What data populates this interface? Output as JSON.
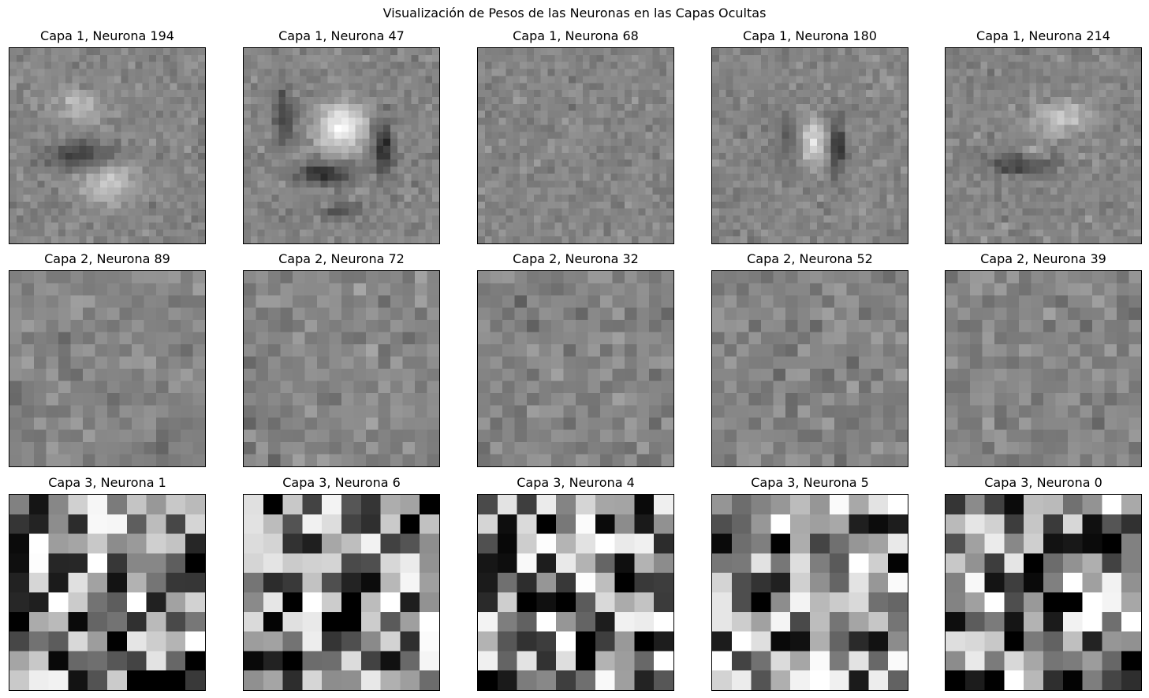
{
  "figure": {
    "title": "Visualización de Pesos de las Neuronas en las Capas Ocultas",
    "colormap": "gray"
  },
  "chart_data": [
    {
      "type": "heatmap",
      "title": "Capa 1, Neurona 194",
      "layer": 1,
      "neuron": 194,
      "grid": [
        28,
        28
      ],
      "pattern": "two-blobs",
      "seed": 194
    },
    {
      "type": "heatmap",
      "title": "Capa 1, Neurona 47",
      "layer": 1,
      "neuron": 47,
      "grid": [
        28,
        28
      ],
      "pattern": "bright-center",
      "seed": 47
    },
    {
      "type": "heatmap",
      "title": "Capa 1, Neurona 68",
      "layer": 1,
      "neuron": 68,
      "grid": [
        28,
        28
      ],
      "pattern": "noise",
      "seed": 68
    },
    {
      "type": "heatmap",
      "title": "Capa 1, Neurona 180",
      "layer": 1,
      "neuron": 180,
      "grid": [
        28,
        28
      ],
      "pattern": "stroke",
      "seed": 180
    },
    {
      "type": "heatmap",
      "title": "Capa 1, Neurona 214",
      "layer": 1,
      "neuron": 214,
      "grid": [
        28,
        28
      ],
      "pattern": "ring",
      "seed": 214
    },
    {
      "type": "heatmap",
      "title": "Capa 2, Neurona 89",
      "layer": 2,
      "neuron": 89,
      "grid": [
        16,
        16
      ],
      "pattern": "noise",
      "seed": 89
    },
    {
      "type": "heatmap",
      "title": "Capa 2, Neurona 72",
      "layer": 2,
      "neuron": 72,
      "grid": [
        16,
        16
      ],
      "pattern": "noise",
      "seed": 72
    },
    {
      "type": "heatmap",
      "title": "Capa 2, Neurona 32",
      "layer": 2,
      "neuron": 32,
      "grid": [
        16,
        16
      ],
      "pattern": "noise",
      "seed": 32
    },
    {
      "type": "heatmap",
      "title": "Capa 2, Neurona 52",
      "layer": 2,
      "neuron": 52,
      "grid": [
        16,
        16
      ],
      "pattern": "noise",
      "seed": 52
    },
    {
      "type": "heatmap",
      "title": "Capa 2, Neurona 39",
      "layer": 2,
      "neuron": 39,
      "grid": [
        16,
        16
      ],
      "pattern": "noise",
      "seed": 39
    },
    {
      "type": "heatmap",
      "title": "Capa 3, Neurona 1",
      "layer": 3,
      "neuron": 1,
      "grid": [
        10,
        10
      ],
      "pattern": "noise",
      "seed": 1
    },
    {
      "type": "heatmap",
      "title": "Capa 3, Neurona 6",
      "layer": 3,
      "neuron": 6,
      "grid": [
        10,
        10
      ],
      "pattern": "noise",
      "seed": 6
    },
    {
      "type": "heatmap",
      "title": "Capa 3, Neurona 4",
      "layer": 3,
      "neuron": 4,
      "grid": [
        10,
        10
      ],
      "pattern": "noise",
      "seed": 4
    },
    {
      "type": "heatmap",
      "title": "Capa 3, Neurona 5",
      "layer": 3,
      "neuron": 5,
      "grid": [
        10,
        10
      ],
      "pattern": "noise",
      "seed": 5
    },
    {
      "type": "heatmap",
      "title": "Capa 3, Neurona 0",
      "layer": 3,
      "neuron": 0,
      "grid": [
        10,
        10
      ],
      "pattern": "noise",
      "seed": 0
    }
  ]
}
